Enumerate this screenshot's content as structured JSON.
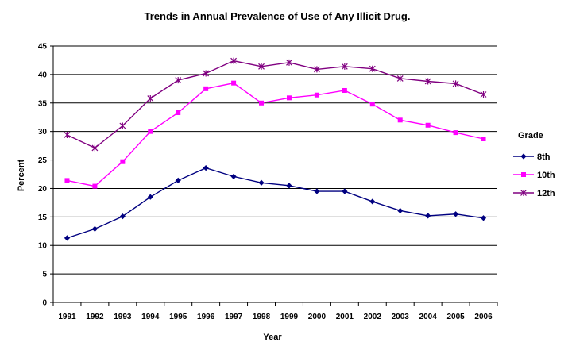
{
  "chart_data": {
    "type": "line",
    "title": "Trends in Annual Prevalence of Use of Any Illicit Drug.",
    "xlabel": "Year",
    "ylabel": "Percent",
    "ylim": [
      0,
      45
    ],
    "yticks": [
      "0",
      "5",
      "10",
      "15",
      "20",
      "25",
      "30",
      "35",
      "40",
      "45"
    ],
    "categories": [
      "1991",
      "1992",
      "1993",
      "1994",
      "1995",
      "1996",
      "1997",
      "1998",
      "1999",
      "2000",
      "2001",
      "2002",
      "2003",
      "2004",
      "2005",
      "2006"
    ],
    "grid": "horizontal",
    "legend": {
      "title": "Grade",
      "position": "right"
    },
    "series": [
      {
        "name": "8th",
        "color": "#000080",
        "marker": "diamond",
        "values": [
          11.3,
          12.9,
          15.1,
          18.5,
          21.4,
          23.6,
          22.1,
          21.0,
          20.5,
          19.5,
          19.5,
          17.7,
          16.1,
          15.2,
          15.5,
          14.8
        ]
      },
      {
        "name": "10th",
        "color": "#FF00FF",
        "marker": "square",
        "values": [
          21.4,
          20.4,
          24.7,
          30.0,
          33.3,
          37.5,
          38.5,
          35.0,
          35.9,
          36.4,
          37.2,
          34.8,
          32.0,
          31.1,
          29.8,
          28.7
        ]
      },
      {
        "name": "12th",
        "color": "#800080",
        "marker": "star",
        "values": [
          29.4,
          27.1,
          31.0,
          35.8,
          39.0,
          40.2,
          42.4,
          41.4,
          42.1,
          40.9,
          41.4,
          41.0,
          39.3,
          38.8,
          38.4,
          36.5
        ]
      }
    ]
  }
}
